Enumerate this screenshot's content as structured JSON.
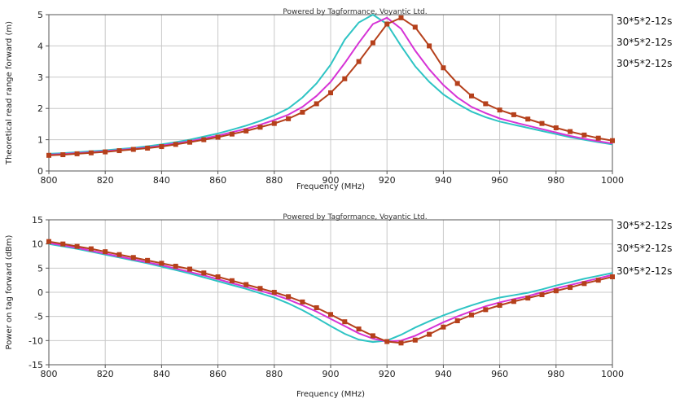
{
  "colors": {
    "teal": "#2ec4c4",
    "magenta": "#d633d6",
    "brick": "#b5401b"
  },
  "chart_data": [
    {
      "type": "line",
      "credit": "Powered by Tagformance, Voyantic Ltd.",
      "xlabel": "Frequency (MHz)",
      "ylabel": "Theoretical read range forward (m)",
      "xlim": [
        800,
        1000
      ],
      "ylim": [
        0,
        5
      ],
      "xticks": [
        800,
        820,
        840,
        860,
        880,
        900,
        920,
        940,
        960,
        980,
        1000
      ],
      "yticks": [
        0,
        1,
        2,
        3,
        4,
        5
      ],
      "grid": true,
      "legend_position": "right",
      "x": [
        800,
        805,
        810,
        815,
        820,
        825,
        830,
        835,
        840,
        845,
        850,
        855,
        860,
        865,
        870,
        875,
        880,
        885,
        890,
        895,
        900,
        905,
        910,
        915,
        920,
        925,
        930,
        935,
        940,
        945,
        950,
        955,
        960,
        965,
        970,
        975,
        980,
        985,
        990,
        995,
        1000
      ],
      "series": [
        {
          "name": "30*5*2-12s",
          "color_key": "teal",
          "markers": false,
          "values": [
            0.55,
            0.57,
            0.6,
            0.63,
            0.66,
            0.7,
            0.74,
            0.79,
            0.85,
            0.92,
            1.0,
            1.1,
            1.2,
            1.32,
            1.45,
            1.6,
            1.78,
            2.0,
            2.35,
            2.8,
            3.4,
            4.2,
            4.75,
            5.0,
            4.7,
            4.0,
            3.35,
            2.85,
            2.45,
            2.15,
            1.9,
            1.72,
            1.58,
            1.48,
            1.38,
            1.28,
            1.18,
            1.08,
            1.0,
            0.92,
            0.85
          ]
        },
        {
          "name": "30*5*2-12s",
          "color_key": "magenta",
          "markers": false,
          "values": [
            0.52,
            0.54,
            0.57,
            0.6,
            0.63,
            0.67,
            0.71,
            0.75,
            0.81,
            0.88,
            0.95,
            1.04,
            1.13,
            1.24,
            1.35,
            1.48,
            1.63,
            1.8,
            2.05,
            2.4,
            2.85,
            3.45,
            4.1,
            4.7,
            4.9,
            4.55,
            3.85,
            3.25,
            2.75,
            2.35,
            2.05,
            1.85,
            1.68,
            1.56,
            1.45,
            1.34,
            1.23,
            1.12,
            1.03,
            0.95,
            0.88
          ]
        },
        {
          "name": "30*5*2-12s",
          "color_key": "brick",
          "markers": true,
          "values": [
            0.5,
            0.52,
            0.55,
            0.58,
            0.61,
            0.65,
            0.69,
            0.73,
            0.78,
            0.85,
            0.92,
            1.0,
            1.08,
            1.18,
            1.28,
            1.4,
            1.52,
            1.67,
            1.88,
            2.15,
            2.5,
            2.95,
            3.5,
            4.1,
            4.7,
            4.9,
            4.6,
            4.0,
            3.3,
            2.8,
            2.4,
            2.15,
            1.95,
            1.8,
            1.66,
            1.52,
            1.38,
            1.26,
            1.15,
            1.05,
            0.97
          ]
        }
      ]
    },
    {
      "type": "line",
      "credit": "Powered by Tagformance, Voyantic Ltd.",
      "xlabel": "Frequency (MHz)",
      "ylabel": "Power on tag forward (dBm)",
      "xlim": [
        800,
        1000
      ],
      "ylim": [
        -15,
        15
      ],
      "xticks": [
        800,
        820,
        840,
        860,
        880,
        900,
        920,
        940,
        960,
        980,
        1000
      ],
      "yticks": [
        -15,
        -10,
        -5,
        0,
        5,
        10,
        15
      ],
      "grid": true,
      "legend_position": "right",
      "x": [
        800,
        805,
        810,
        815,
        820,
        825,
        830,
        835,
        840,
        845,
        850,
        855,
        860,
        865,
        870,
        875,
        880,
        885,
        890,
        895,
        900,
        905,
        910,
        915,
        920,
        925,
        930,
        935,
        940,
        945,
        950,
        955,
        960,
        965,
        970,
        975,
        980,
        985,
        990,
        995,
        1000
      ],
      "series": [
        {
          "name": "30*5*2-12s",
          "color_key": "teal",
          "markers": false,
          "values": [
            10.0,
            9.5,
            9.0,
            8.4,
            7.8,
            7.2,
            6.6,
            6.0,
            5.3,
            4.6,
            3.9,
            3.1,
            2.3,
            1.5,
            0.7,
            -0.2,
            -1.1,
            -2.3,
            -3.7,
            -5.3,
            -7.0,
            -8.6,
            -9.8,
            -10.3,
            -10.0,
            -8.8,
            -7.3,
            -6.0,
            -4.8,
            -3.7,
            -2.7,
            -1.8,
            -1.1,
            -0.6,
            -0.1,
            0.6,
            1.4,
            2.1,
            2.8,
            3.4,
            4.0
          ]
        },
        {
          "name": "30*5*2-12s",
          "color_key": "magenta",
          "markers": false,
          "values": [
            10.2,
            9.7,
            9.2,
            8.6,
            8.0,
            7.4,
            6.8,
            6.2,
            5.6,
            4.9,
            4.2,
            3.5,
            2.7,
            1.9,
            1.1,
            0.3,
            -0.5,
            -1.5,
            -2.7,
            -4.0,
            -5.5,
            -7.0,
            -8.5,
            -9.6,
            -10.2,
            -10.0,
            -9.0,
            -7.6,
            -6.2,
            -5.0,
            -3.9,
            -2.9,
            -2.1,
            -1.4,
            -0.8,
            0,
            0.8,
            1.5,
            2.2,
            2.9,
            3.6
          ]
        },
        {
          "name": "30*5*2-12s",
          "color_key": "brick",
          "markers": true,
          "values": [
            10.5,
            10.0,
            9.5,
            9.0,
            8.4,
            7.8,
            7.2,
            6.6,
            6.0,
            5.4,
            4.8,
            4.0,
            3.2,
            2.4,
            1.6,
            0.8,
            0,
            -0.9,
            -2.0,
            -3.2,
            -4.6,
            -6.1,
            -7.6,
            -9.0,
            -10.2,
            -10.5,
            -9.9,
            -8.7,
            -7.2,
            -5.9,
            -4.7,
            -3.6,
            -2.7,
            -1.9,
            -1.2,
            -0.5,
            0.3,
            1.0,
            1.8,
            2.5,
            3.2
          ]
        }
      ]
    }
  ]
}
